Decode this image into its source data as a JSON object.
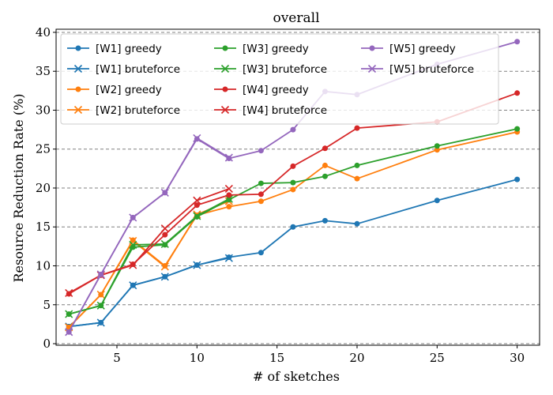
{
  "chart_data": {
    "type": "line",
    "title": "overall",
    "xlabel": "# of sketches",
    "ylabel": "Resource Reduction Rate (%)",
    "xlim": [
      1.2,
      31.4
    ],
    "ylim": [
      -0.2,
      40.4
    ],
    "xticks": [
      5,
      10,
      15,
      20,
      25,
      30
    ],
    "yticks": [
      0,
      5,
      10,
      15,
      20,
      25,
      30,
      35,
      40
    ],
    "grid": "horizontal dashed",
    "legend_position": "top-left",
    "series": [
      {
        "name": "[W1] greedy",
        "color": "#1f77b4",
        "marker": "circle",
        "x": [
          2,
          4,
          6,
          8,
          10,
          12,
          14,
          16,
          18,
          20,
          25,
          30
        ],
        "y": [
          2.2,
          2.7,
          7.5,
          8.6,
          10.1,
          11.1,
          11.7,
          15.0,
          15.8,
          15.4,
          18.4,
          21.1
        ]
      },
      {
        "name": "[W1] bruteforce",
        "color": "#1f77b4",
        "marker": "x",
        "x": [
          2,
          4,
          6,
          8,
          10,
          12
        ],
        "y": [
          2.2,
          2.7,
          7.5,
          8.6,
          10.1,
          11.0
        ]
      },
      {
        "name": "[W2] greedy",
        "color": "#ff7f0e",
        "marker": "circle",
        "x": [
          2,
          4,
          6,
          8,
          10,
          12,
          14,
          16,
          18,
          20,
          25,
          30
        ],
        "y": [
          2.1,
          6.3,
          13.3,
          10.0,
          16.5,
          17.6,
          18.3,
          19.8,
          22.9,
          21.2,
          24.9,
          27.2
        ]
      },
      {
        "name": "[W2] bruteforce",
        "color": "#ff7f0e",
        "marker": "x",
        "x": [
          2,
          4,
          6,
          8,
          10,
          12
        ],
        "y": [
          2.1,
          6.3,
          13.2,
          9.9,
          16.6,
          18.3
        ]
      },
      {
        "name": "[W3] greedy",
        "color": "#2ca02c",
        "marker": "circle",
        "x": [
          2,
          4,
          6,
          8,
          10,
          12,
          14,
          16,
          18,
          20,
          25,
          30
        ],
        "y": [
          3.8,
          4.9,
          12.4,
          12.7,
          16.3,
          18.5,
          20.6,
          20.7,
          21.5,
          22.9,
          25.4,
          27.6
        ]
      },
      {
        "name": "[W3] bruteforce",
        "color": "#2ca02c",
        "marker": "x",
        "x": [
          2,
          4,
          6,
          8,
          10,
          12
        ],
        "y": [
          3.8,
          4.9,
          12.7,
          12.8,
          16.4,
          18.6
        ]
      },
      {
        "name": "[W4] greedy",
        "color": "#d62728",
        "marker": "circle",
        "x": [
          2,
          4,
          6,
          8,
          10,
          12,
          14,
          16,
          18,
          20,
          25,
          30
        ],
        "y": [
          6.4,
          8.8,
          10.2,
          14.0,
          17.8,
          19.1,
          19.2,
          22.8,
          25.1,
          27.7,
          28.5,
          32.2
        ]
      },
      {
        "name": "[W4] bruteforce",
        "color": "#d62728",
        "marker": "x",
        "x": [
          2,
          4,
          6,
          8,
          10,
          12
        ],
        "y": [
          6.5,
          8.8,
          10.1,
          14.8,
          18.4,
          19.9
        ]
      },
      {
        "name": "[W5] greedy",
        "color": "#9467bd",
        "marker": "circle",
        "x": [
          2,
          4,
          6,
          8,
          10,
          12,
          14,
          16,
          18,
          20,
          25,
          30
        ],
        "y": [
          1.5,
          8.9,
          16.2,
          19.4,
          26.3,
          23.8,
          24.8,
          27.5,
          32.4,
          32.0,
          35.9,
          38.8
        ]
      },
      {
        "name": "[W5] bruteforce",
        "color": "#9467bd",
        "marker": "x",
        "x": [
          2,
          4,
          6,
          8,
          10,
          12
        ],
        "y": [
          1.5,
          8.9,
          16.2,
          19.4,
          26.4,
          23.9
        ]
      }
    ]
  }
}
